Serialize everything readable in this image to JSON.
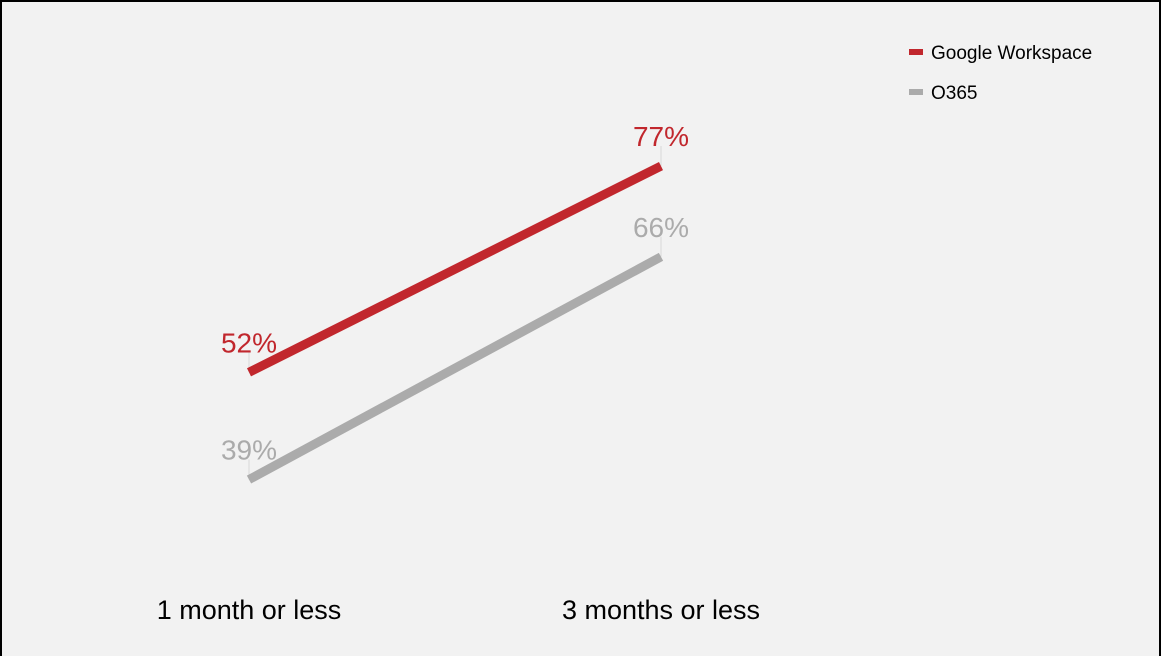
{
  "chart_data": {
    "type": "line",
    "categories": [
      "1 month or less",
      "3 months or less"
    ],
    "series": [
      {
        "name": "Google Workspace",
        "values": [
          52,
          77
        ],
        "labels": [
          "52%",
          "77%"
        ],
        "color": "#c1272d"
      },
      {
        "name": "O365",
        "values": [
          39,
          66
        ],
        "labels": [
          "39%",
          "66%"
        ],
        "color": "#ababab"
      }
    ],
    "ylim": [
      0,
      100
    ],
    "legend_position": "top-right",
    "grid": false,
    "background": "#f2f2f2"
  }
}
